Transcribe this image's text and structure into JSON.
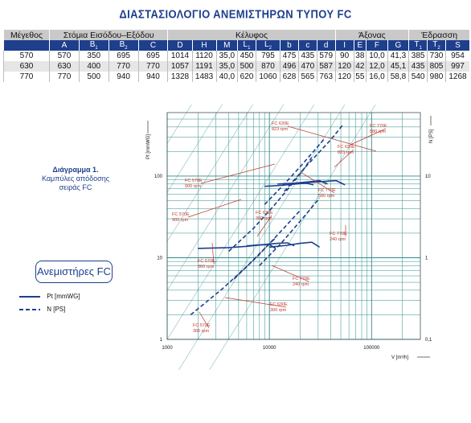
{
  "title": "ΔΙΑΣΤΑΣΙΟΛΟΓΙΟ ΑΝΕΜΙΣΤΗΡΩΝ ΤΥΠΟΥ FC",
  "table": {
    "groups": [
      "Μέγεθος",
      "Στόμια Εισόδου–Εξόδου",
      "Κέλυφος",
      "Άξονας",
      "Έδρασση"
    ],
    "columns": [
      "A",
      "B1",
      "B2",
      "C",
      "D",
      "H",
      "M",
      "L1",
      "L2",
      "b",
      "c",
      "d",
      "I",
      "E",
      "F",
      "G",
      "T1",
      "T2",
      "S"
    ],
    "rows": [
      [
        "570",
        "570",
        "350",
        "695",
        "695",
        "1014",
        "1120",
        "35,0",
        "450",
        "795",
        "475",
        "435",
        "579",
        "90",
        "38",
        "10,0",
        "41,3",
        "385",
        "730",
        "954"
      ],
      [
        "630",
        "630",
        "400",
        "770",
        "770",
        "1057",
        "1191",
        "35,0",
        "500",
        "870",
        "496",
        "470",
        "587",
        "120",
        "42",
        "12,0",
        "45,1",
        "435",
        "805",
        "997"
      ],
      [
        "770",
        "770",
        "500",
        "940",
        "940",
        "1328",
        "1483",
        "40,0",
        "620",
        "1060",
        "628",
        "565",
        "763",
        "120",
        "55",
        "16,0",
        "58,8",
        "540",
        "980",
        "1268"
      ]
    ]
  },
  "diagram": {
    "title": "Διάγραμμα 1.",
    "subtitle1": "Καμπύλες απόδοσης",
    "subtitle2": "σειράς FC"
  },
  "fc_box": "Ανεμιστήρες FC",
  "legend": {
    "pt": "Pt [mmWG]",
    "n": "N [PS]"
  },
  "chart_data": {
    "type": "line",
    "scale": "log-log",
    "ylabel_left": "Pt [mmWG]",
    "ylabel_right": "N [PS]",
    "xlabel": "V [m³/h]",
    "x_ticks": [
      "1000",
      "10000",
      "100000"
    ],
    "y_left_ticks": [
      "1",
      "10",
      "100"
    ],
    "y_right_ticks": [
      "0,1",
      "1",
      "10"
    ],
    "xlim": [
      1000,
      300000
    ],
    "ylim_left": [
      1,
      600
    ],
    "ylim_right": [
      0.1,
      60
    ],
    "labels": [
      {
        "name": "FC 630E",
        "rpm": "823 rpm",
        "color": "#c0392b"
      },
      {
        "name": "FC 770E",
        "rpm": "580 rpm",
        "color": "#c0392b"
      },
      {
        "name": "FC 630E",
        "rpm": "823 rpm",
        "color": "#c0392b"
      },
      {
        "name": "FC 570E",
        "rpm": "900 rpm",
        "color": "#c0392b"
      },
      {
        "name": "FC 770E",
        "rpm": "580 rpm",
        "color": "#c0392b"
      },
      {
        "name": "FC 570E",
        "rpm": "900 rpm",
        "color": "#c0392b"
      },
      {
        "name": "FC 630E",
        "rpm": "300 rpm",
        "color": "#c0392b"
      },
      {
        "name": "FC 770E",
        "rpm": "240 rpm",
        "color": "#c0392b"
      },
      {
        "name": "FC 570E",
        "rpm": "360 rpm",
        "color": "#c0392b"
      },
      {
        "name": "FC 770E",
        "rpm": "240 rpm",
        "color": "#c0392b"
      },
      {
        "name": "FC 630E",
        "rpm": "300 rpm",
        "color": "#c0392b"
      },
      {
        "name": "FC 570E",
        "rpm": "360 rpm",
        "color": "#c0392b"
      }
    ],
    "series_pt": [
      {
        "x": [
          9000,
          13000,
          18000,
          23000,
          27000
        ],
        "y": [
          75,
          77,
          80,
          82,
          78
        ]
      },
      {
        "x": [
          12000,
          18000,
          24000,
          31000,
          37000
        ],
        "y": [
          80,
          82,
          85,
          88,
          80
        ]
      },
      {
        "x": [
          18000,
          26000,
          35000,
          45000,
          55000
        ],
        "y": [
          82,
          84,
          86,
          88,
          78
        ]
      },
      {
        "x": [
          2000,
          4000,
          6000,
          8000,
          10000,
          11500
        ],
        "y": [
          13,
          13.3,
          13.8,
          14.3,
          14.5,
          13
        ]
      },
      {
        "x": [
          6000,
          9000,
          12000,
          15000,
          17500
        ],
        "y": [
          14,
          14.5,
          15,
          15.2,
          14
        ]
      },
      {
        "x": [
          10000,
          15000,
          20000,
          26000,
          31000
        ],
        "y": [
          13.5,
          14.2,
          15,
          15.5,
          13.5
        ]
      }
    ],
    "series_n": [
      {
        "x": [
          4000,
          7000,
          11000,
          16000,
          22000,
          26000
        ],
        "y": [
          1.2,
          2.3,
          4.3,
          7.5,
          12.5,
          17
        ]
      },
      {
        "x": [
          9000,
          14000,
          20000,
          27000,
          34000
        ],
        "y": [
          4.5,
          8,
          13,
          20,
          28
        ]
      },
      {
        "x": [
          14000,
          22000,
          30000,
          40000,
          52000
        ],
        "y": [
          6.5,
          12.5,
          19,
          28,
          42
        ]
      },
      {
        "x": [
          1700,
          3500,
          6000,
          9000,
          11500
        ],
        "y": [
          0.2,
          0.42,
          0.78,
          1.3,
          1.75
        ]
      },
      {
        "x": [
          4500,
          8000,
          12000,
          16000,
          20000
        ],
        "y": [
          0.55,
          1.1,
          1.9,
          2.8,
          3.8
        ]
      },
      {
        "x": [
          8000,
          13000,
          19000,
          25000,
          31000
        ],
        "y": [
          0.8,
          1.5,
          2.6,
          3.9,
          5.4
        ]
      }
    ]
  }
}
